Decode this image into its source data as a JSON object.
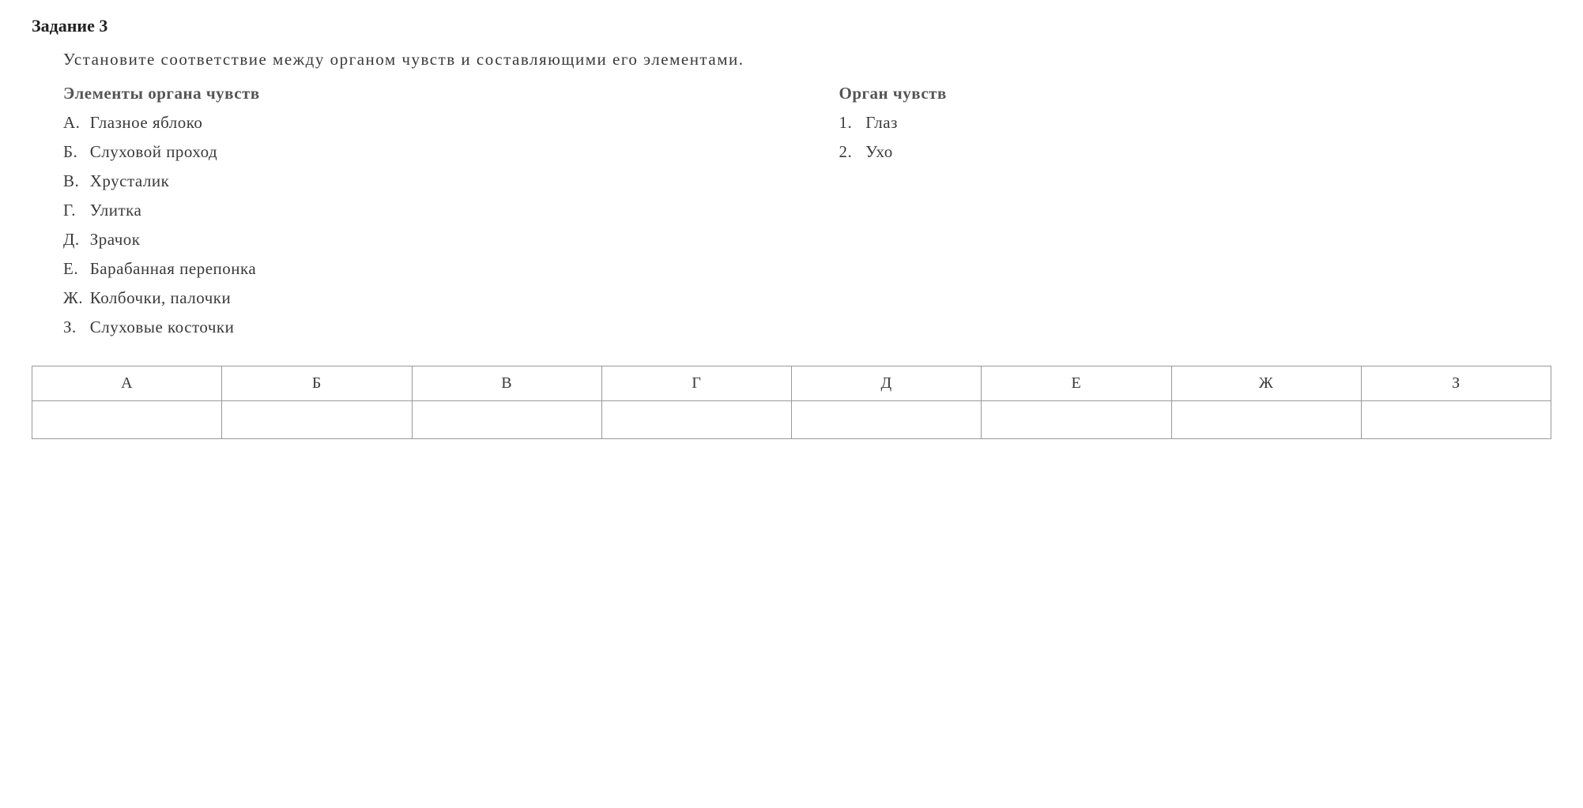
{
  "task": {
    "title": "Задание 3",
    "description": "Установите соответствие между органом чувств и составляющими его элементами."
  },
  "leftColumn": {
    "header": "Элементы органа чувств",
    "items": [
      {
        "letter": "А.",
        "text": "Глазное яблоко"
      },
      {
        "letter": "Б.",
        "text": "Слуховой проход"
      },
      {
        "letter": "В.",
        "text": "Хрусталик"
      },
      {
        "letter": "Г.",
        "text": "Улитка"
      },
      {
        "letter": "Д.",
        "text": "Зрачок"
      },
      {
        "letter": "Е.",
        "text": "Барабанная перепонка"
      },
      {
        "letter": "Ж.",
        "text": "Колбочки, палочки"
      },
      {
        "letter": "З.",
        "text": "Слуховые косточки"
      }
    ]
  },
  "rightColumn": {
    "header": "Орган чувств",
    "items": [
      {
        "letter": "1.",
        "text": "Глаз"
      },
      {
        "letter": "2.",
        "text": "Ухо"
      }
    ]
  },
  "answerTable": {
    "headers": [
      "А",
      "Б",
      "В",
      "Г",
      "Д",
      "Е",
      "Ж",
      "З"
    ],
    "answers": [
      "",
      "",
      "",
      "",
      "",
      "",
      "",
      ""
    ]
  },
  "styling": {
    "background_color": "#ffffff",
    "text_color": "#3a3a3a",
    "title_color": "#222222",
    "header_color": "#555555",
    "border_color": "#999999",
    "title_fontsize": 22,
    "body_fontsize": 21,
    "font_family": "Georgia, Times New Roman, serif"
  }
}
